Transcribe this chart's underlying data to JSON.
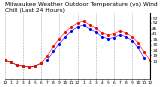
{
  "title": "Milwaukee Weather Outdoor Temperature (vs) Wind Chill (Last 24 Hours)",
  "title_fontsize": 4.2,
  "background_color": "#ffffff",
  "plot_bg_color": "#ffffff",
  "grid_color": "#aaaaaa",
  "ylim": [
    -5,
    62
  ],
  "xlim": [
    0,
    24
  ],
  "temp": [
    14,
    12,
    9,
    8,
    7,
    8,
    11,
    18,
    28,
    36,
    43,
    48,
    52,
    54,
    50,
    47,
    42,
    40,
    41,
    44,
    42,
    38,
    32,
    22,
    14
  ],
  "wind_chill": [
    null,
    null,
    null,
    null,
    null,
    null,
    null,
    14,
    23,
    31,
    38,
    44,
    48,
    50,
    46,
    43,
    38,
    36,
    37,
    40,
    38,
    34,
    27,
    16,
    null
  ],
  "black_line": [
    14,
    12,
    9,
    8,
    7,
    8,
    11,
    null,
    null,
    null,
    null,
    null,
    null,
    null,
    null,
    null,
    null,
    null,
    null,
    null,
    null,
    null,
    null,
    null,
    null
  ],
  "temp_color": "#ff0000",
  "wind_chill_color": "#0000ff",
  "black_color": "#000000",
  "marker_size": 1.2,
  "line_width": 0.4,
  "vgrid_positions": [
    0,
    3,
    6,
    9,
    12,
    15,
    18,
    21,
    24
  ],
  "xtick_labels": [
    "12",
    "1",
    "2",
    "3",
    "4",
    "5",
    "6",
    "7",
    "8",
    "9",
    "10",
    "11",
    "12",
    "1",
    "2",
    "3",
    "4",
    "5",
    "6",
    "7",
    "8",
    "9",
    "10",
    "11",
    "12"
  ],
  "ytick_vals": [
    57,
    52,
    46,
    41,
    35,
    30,
    24,
    19,
    13
  ],
  "xtick_fontsize": 3.2,
  "ytick_fontsize": 3.2
}
